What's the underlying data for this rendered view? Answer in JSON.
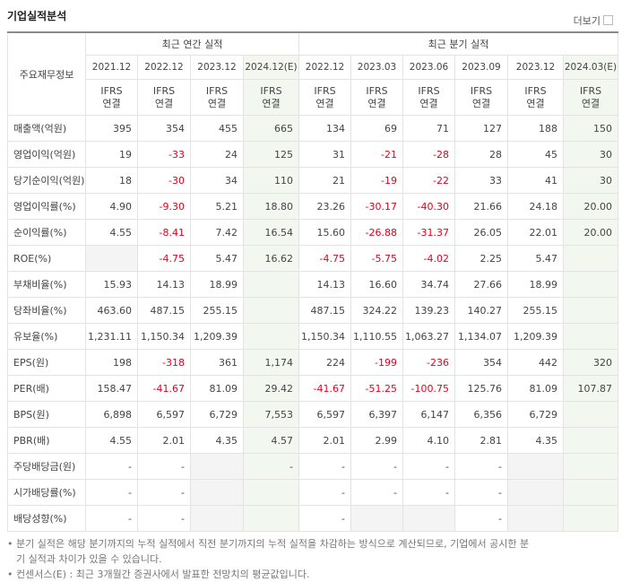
{
  "header": {
    "title": "기업실적분석",
    "more": "더보기"
  },
  "table": {
    "corner": "주요재무정보",
    "sections": [
      {
        "label": "최근 연간 실적",
        "span": 4
      },
      {
        "label": "최근 분기 실적",
        "span": 6
      }
    ],
    "periods": [
      "2021.12",
      "2022.12",
      "2023.12",
      "2024.12(E)",
      "2022.12",
      "2023.03",
      "2023.06",
      "2023.09",
      "2023.12",
      "2024.03(E)"
    ],
    "standards": [
      "IFRS\n연결",
      "IFRS\n연결",
      "IFRS\n연결",
      "IFRS\n연결",
      "IFRS\n연결",
      "IFRS\n연결",
      "IFRS\n연결",
      "IFRS\n연결",
      "IFRS\n연결",
      "IFRS\n연결"
    ],
    "groups": [
      {
        "rows": [
          {
            "label": "매출액(억원)",
            "cells": [
              "395",
              "354",
              "455",
              "665",
              "134",
              "69",
              "71",
              "127",
              "188",
              "150"
            ]
          },
          {
            "label": "영업이익(억원)",
            "cells": [
              "19",
              "-33",
              "24",
              "125",
              "31",
              "-21",
              "-28",
              "28",
              "45",
              "30"
            ]
          },
          {
            "label": "당기순이익(억원)",
            "cells": [
              "18",
              "-30",
              "34",
              "110",
              "21",
              "-19",
              "-22",
              "33",
              "41",
              "30"
            ]
          }
        ]
      },
      {
        "rows": [
          {
            "label": "영업이익률(%)",
            "cells": [
              "4.90",
              "-9.30",
              "5.21",
              "18.80",
              "23.26",
              "-30.17",
              "-40.30",
              "21.66",
              "24.18",
              "20.00"
            ]
          },
          {
            "label": "순이익률(%)",
            "cells": [
              "4.55",
              "-8.41",
              "7.42",
              "16.54",
              "15.60",
              "-26.88",
              "-31.37",
              "26.05",
              "22.01",
              "20.00"
            ]
          },
          {
            "label": "ROE(%)",
            "cells": [
              null,
              "-4.75",
              "5.47",
              "16.62",
              "-4.75",
              "-5.75",
              "-4.02",
              "2.25",
              "5.47",
              null
            ]
          }
        ]
      },
      {
        "rows": [
          {
            "label": "부채비율(%)",
            "cells": [
              "15.93",
              "14.13",
              "18.99",
              null,
              "14.13",
              "16.60",
              "34.74",
              "27.66",
              "18.99",
              null
            ]
          },
          {
            "label": "당좌비율(%)",
            "cells": [
              "463.60",
              "487.15",
              "255.15",
              null,
              "487.15",
              "324.22",
              "139.23",
              "140.27",
              "255.15",
              null
            ]
          },
          {
            "label": "유보율(%)",
            "cells": [
              "1,231.11",
              "1,150.34",
              "1,209.39",
              null,
              "1,150.34",
              "1,110.55",
              "1,063.27",
              "1,134.07",
              "1,209.39",
              null
            ]
          }
        ]
      },
      {
        "rows": [
          {
            "label": "EPS(원)",
            "cells": [
              "198",
              "-318",
              "361",
              "1,174",
              "224",
              "-199",
              "-236",
              "354",
              "442",
              "320"
            ]
          },
          {
            "label": "PER(배)",
            "cells": [
              "158.47",
              "-41.67",
              "81.09",
              "29.42",
              "-41.67",
              "-51.25",
              "-100.75",
              "125.76",
              "81.09",
              "107.87"
            ]
          },
          {
            "label": "BPS(원)",
            "cells": [
              "6,898",
              "6,597",
              "6,729",
              "7,553",
              "6,597",
              "6,397",
              "6,147",
              "6,356",
              "6,729",
              null
            ]
          },
          {
            "label": "PBR(배)",
            "cells": [
              "4.55",
              "2.01",
              "4.35",
              "4.57",
              "2.01",
              "2.99",
              "4.10",
              "2.81",
              "4.35",
              null
            ]
          }
        ]
      },
      {
        "rows": [
          {
            "label": "주당배당금(원)",
            "cells": [
              "-",
              "-",
              null,
              "-",
              "-",
              "-",
              "-",
              "-",
              null,
              null
            ]
          },
          {
            "label": "시가배당률(%)",
            "cells": [
              "-",
              "-",
              null,
              null,
              "-",
              "-",
              "-",
              "-",
              null,
              null
            ]
          },
          {
            "label": "배당성향(%)",
            "cells": [
              "-",
              "-",
              null,
              null,
              "-",
              null,
              null,
              "-",
              null,
              null
            ]
          }
        ]
      }
    ]
  },
  "notes": [
    "분기 실적은 해당 분기까지의 누적 실적에서 직전 분기까지의 누적 실적을 차감하는 방식으로 계산되므로, 기업에서 공시한 분기 실적과 차이가 있을 수 있습니다.",
    "컨센서스(E) : 최근 3개월간 증권사에서 발표한 전망치의 평균값입니다."
  ]
}
